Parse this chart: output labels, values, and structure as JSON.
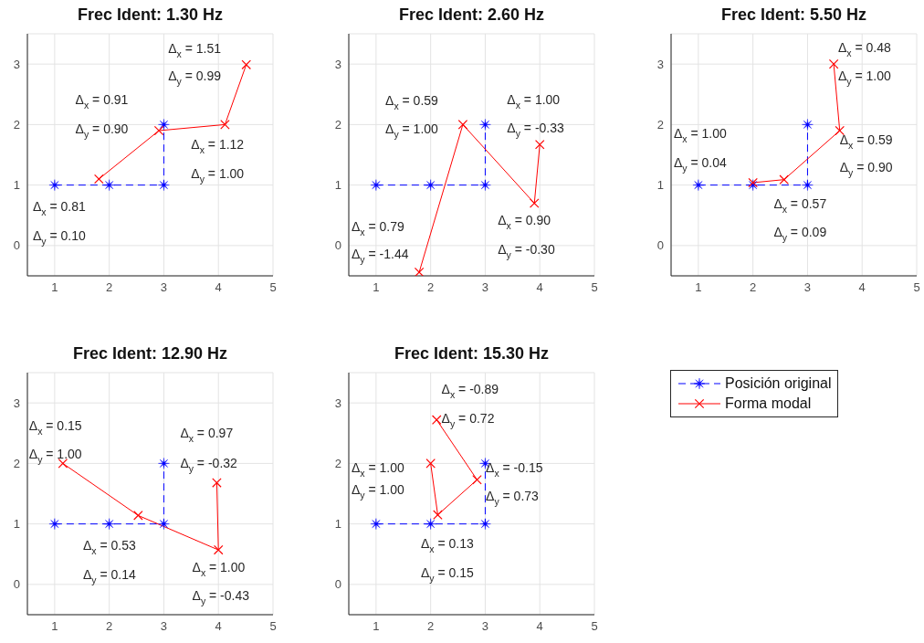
{
  "chart_data": [
    {
      "type": "line",
      "title": "Frec Ident: 1.30 Hz",
      "xlim": [
        0.5,
        5
      ],
      "xticks": [
        1,
        2,
        3,
        4,
        5
      ],
      "ylim": [
        -0.5,
        3.5
      ],
      "yticks": [
        0,
        1,
        2,
        3
      ],
      "grid": true,
      "series": [
        {
          "color": "#0000ff",
          "x": [
            1,
            2,
            3,
            3
          ],
          "values": [
            1,
            1,
            1,
            2
          ],
          "marker": "star",
          "line_style": "dashed"
        },
        {
          "color": "#ff0000",
          "x": [
            1.81,
            2.91,
            4.12,
            4.51
          ],
          "values": [
            1.1,
            1.9,
            2.0,
            2.99
          ],
          "marker": "cross",
          "line_style": "solid"
        }
      ],
      "annotations": [
        "Δ$_{x}$ = 0.81",
        "Δ$_{y}$ = 0.10",
        "Δ$_{x}$ = 0.91",
        "Δ$_{y}$ = 0.90",
        "Δ$_{x}$ = 1.12",
        "Δ$_{y}$ = 1.00",
        "Δ$_{x}$ = 1.51",
        "Δ$_{y}$ = 0.99"
      ]
    },
    {
      "type": "line",
      "title": "Frec Ident: 2.60 Hz",
      "xlim": [
        0.5,
        5
      ],
      "xticks": [
        1,
        2,
        3,
        4,
        5
      ],
      "ylim": [
        -0.5,
        3.5
      ],
      "yticks": [
        0,
        1,
        2,
        3
      ],
      "grid": true,
      "series": [
        {
          "color": "#0000ff",
          "x": [
            1,
            2,
            3,
            3
          ],
          "values": [
            1,
            1,
            1,
            2
          ],
          "marker": "star",
          "line_style": "dashed"
        },
        {
          "color": "#ff0000",
          "x": [
            1.79,
            2.59,
            3.9,
            4.0
          ],
          "values": [
            -0.44,
            2.0,
            0.7,
            1.67
          ],
          "marker": "cross",
          "line_style": "solid"
        }
      ],
      "annotations": [
        "Δ$_{x}$ = 0.79",
        "Δ$_{y}$ = -1.44",
        "Δ$_{x}$ = 0.59",
        "Δ$_{y}$ = 1.00",
        "Δ$_{x}$ = 0.90",
        "Δ$_{y}$ = -0.30",
        "Δ$_{x}$ = 1.00",
        "Δ$_{y}$ = -0.33"
      ]
    },
    {
      "type": "line",
      "title": "Frec Ident: 5.50 Hz",
      "xlim": [
        0.5,
        5
      ],
      "xticks": [
        1,
        2,
        3,
        4,
        5
      ],
      "ylim": [
        -0.5,
        3.5
      ],
      "yticks": [
        0,
        1,
        2,
        3
      ],
      "grid": true,
      "series": [
        {
          "color": "#0000ff",
          "x": [
            1,
            2,
            3,
            3
          ],
          "values": [
            1,
            1,
            1,
            2
          ],
          "marker": "star",
          "line_style": "dashed"
        },
        {
          "color": "#ff0000",
          "x": [
            2.0,
            2.57,
            3.59,
            3.48
          ],
          "values": [
            1.04,
            1.09,
            1.9,
            3.0
          ],
          "marker": "cross",
          "line_style": "solid"
        }
      ],
      "annotations": [
        "Δ$_{x}$ = 1.00",
        "Δ$_{y}$ = 0.04",
        "Δ$_{x}$ = 0.57",
        "Δ$_{y}$ = 0.09",
        "Δ$_{x}$ = 0.59",
        "Δ$_{y}$ = 0.90",
        "Δ$_{x}$ = 0.48",
        "Δ$_{y}$ = 1.00"
      ]
    },
    {
      "type": "line",
      "title": "Frec Ident: 12.90 Hz",
      "xlim": [
        0.5,
        5
      ],
      "xticks": [
        1,
        2,
        3,
        4,
        5
      ],
      "ylim": [
        -0.5,
        3.5
      ],
      "yticks": [
        0,
        1,
        2,
        3
      ],
      "grid": true,
      "series": [
        {
          "color": "#0000ff",
          "x": [
            1,
            2,
            3,
            3
          ],
          "values": [
            1,
            1,
            1,
            2
          ],
          "marker": "star",
          "line_style": "dashed"
        },
        {
          "color": "#ff0000",
          "x": [
            1.15,
            2.53,
            4.0,
            3.97
          ],
          "values": [
            2.0,
            1.14,
            0.57,
            1.68
          ],
          "marker": "cross",
          "line_style": "solid"
        }
      ],
      "annotations": [
        "Δ$_{x}$ = 0.15",
        "Δ$_{y}$ = 1.00",
        "Δ$_{x}$ = 0.53",
        "Δ$_{y}$ = 0.14",
        "Δ$_{x}$ = 1.00",
        "Δ$_{y}$ = -0.43",
        "Δ$_{x}$ = 0.97",
        "Δ$_{y}$ = -0.32"
      ]
    },
    {
      "type": "line",
      "title": "Frec Ident: 15.30 Hz",
      "xlim": [
        0.5,
        5
      ],
      "xticks": [
        1,
        2,
        3,
        4,
        5
      ],
      "ylim": [
        -0.5,
        3.5
      ],
      "yticks": [
        0,
        1,
        2,
        3
      ],
      "grid": true,
      "legend": "right",
      "series": [
        {
          "name": "Posición original",
          "color": "#0000ff",
          "x": [
            1,
            2,
            3,
            3
          ],
          "values": [
            1,
            1,
            1,
            2
          ],
          "marker": "star",
          "line_style": "dashed"
        },
        {
          "name": "Forma modal",
          "color": "#ff0000",
          "x": [
            2.0,
            2.13,
            2.85,
            2.11
          ],
          "values": [
            2.0,
            1.15,
            1.73,
            2.72
          ],
          "marker": "cross",
          "line_style": "solid"
        }
      ],
      "annotations": [
        "Δ$_{x}$ = 1.00",
        "Δ$_{y}$ = 1.00",
        "Δ$_{x}$ = 0.13",
        "Δ$_{y}$ = 0.15",
        "Δ$_{x}$ = -0.15",
        "Δ$_{y}$ = 0.73",
        "Δ$_{x}$ = -0.89",
        "Δ$_{y}$ = 0.72"
      ]
    }
  ]
}
